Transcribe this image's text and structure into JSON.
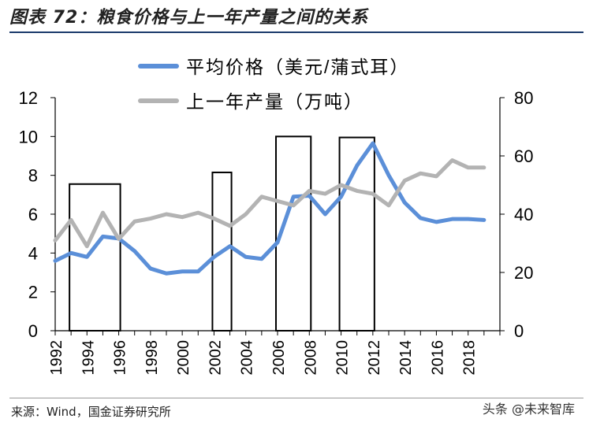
{
  "header": {
    "title": "图表 72：粮食价格与上一年产量之间的关系"
  },
  "footer": {
    "source": "来源：Wind，国金证券研究所",
    "watermark": "头条 @未来智库"
  },
  "colors": {
    "price": "#5b8fd8",
    "output": "#b3b3b3",
    "box": "#000000",
    "axis": "#000000"
  },
  "chart_data": {
    "type": "line",
    "x": [
      1992,
      1993,
      1994,
      1995,
      1996,
      1997,
      1998,
      1999,
      2000,
      2001,
      2002,
      2003,
      2004,
      2005,
      2006,
      2007,
      2008,
      2009,
      2010,
      2011,
      2012,
      2013,
      2014,
      2015,
      2016,
      2017,
      2018,
      2019
    ],
    "x_tick_labels": [
      "1992",
      "1994",
      "1996",
      "1998",
      "2000",
      "2002",
      "2004",
      "2006",
      "2008",
      "2010",
      "2012",
      "2014",
      "2016",
      "2018"
    ],
    "y_left": {
      "ylim": [
        0,
        12
      ],
      "ticks": [
        "0",
        "2",
        "4",
        "6",
        "8",
        "10",
        "12"
      ]
    },
    "y_right": {
      "ylim": [
        0,
        80
      ],
      "ticks": [
        "0",
        "20",
        "40",
        "60",
        "80"
      ]
    },
    "legend_position": "top-center",
    "series": [
      {
        "name": "平均价格（美元/蒲式耳）",
        "axis": "left",
        "values": [
          3.6,
          4.0,
          3.8,
          4.85,
          4.75,
          4.1,
          3.2,
          2.95,
          3.05,
          3.05,
          3.8,
          4.35,
          3.8,
          3.7,
          4.55,
          6.9,
          6.95,
          6.0,
          6.9,
          8.5,
          9.65,
          8.0,
          6.6,
          5.8,
          5.6,
          5.75,
          5.75,
          5.7
        ]
      },
      {
        "name": "上一年产量（万吨）",
        "axis": "right",
        "values": [
          31,
          38,
          29,
          40.5,
          31.5,
          37.5,
          38.5,
          40,
          39,
          40.5,
          38.5,
          36,
          40,
          46,
          44.5,
          43,
          48,
          47,
          50,
          48,
          47,
          43,
          51.5,
          54,
          53,
          58.5,
          56,
          56
        ]
      }
    ],
    "annotations": [
      {
        "type": "box",
        "from": 1993,
        "to": 1996,
        "top": 7.55
      },
      {
        "type": "box",
        "from": 2002,
        "to": 2003,
        "top": 8.15
      },
      {
        "type": "box",
        "from": 2006,
        "to": 2008,
        "top": 10.0
      },
      {
        "type": "box",
        "from": 2010,
        "to": 2012,
        "top": 9.95
      }
    ]
  }
}
